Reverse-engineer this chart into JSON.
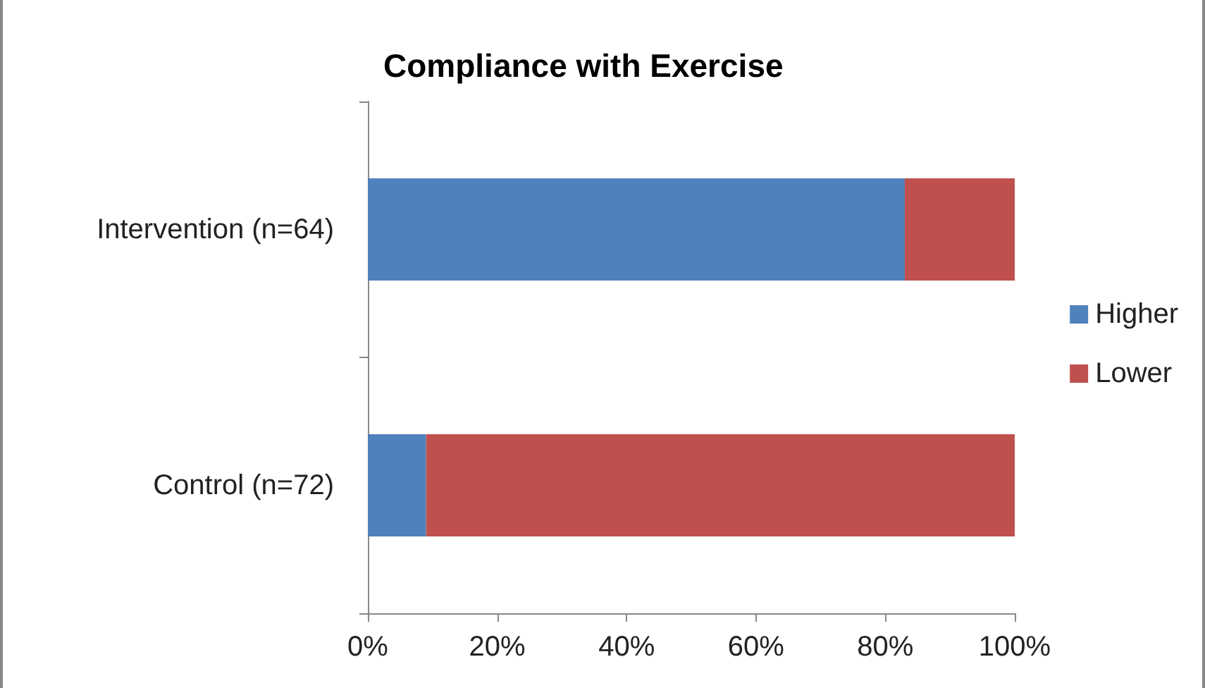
{
  "chart_data": {
    "type": "bar",
    "orientation": "horizontal",
    "stacked": true,
    "title": "Compliance with Exercise",
    "categories": [
      "Intervention (n=64)",
      "Control (n=72)"
    ],
    "series": [
      {
        "name": "Higher",
        "color": "#4f81bd",
        "values": [
          83,
          9
        ]
      },
      {
        "name": "Lower",
        "color": "#c0504d",
        "values": [
          17,
          91
        ]
      }
    ],
    "xlim": [
      0,
      100
    ],
    "xticks": [
      {
        "value": 0,
        "label": "0%"
      },
      {
        "value": 20,
        "label": "20%"
      },
      {
        "value": 40,
        "label": "40%"
      },
      {
        "value": 60,
        "label": "60%"
      },
      {
        "value": 80,
        "label": "80%"
      },
      {
        "value": 100,
        "label": "100%"
      }
    ],
    "grid": false,
    "legend": "right"
  }
}
